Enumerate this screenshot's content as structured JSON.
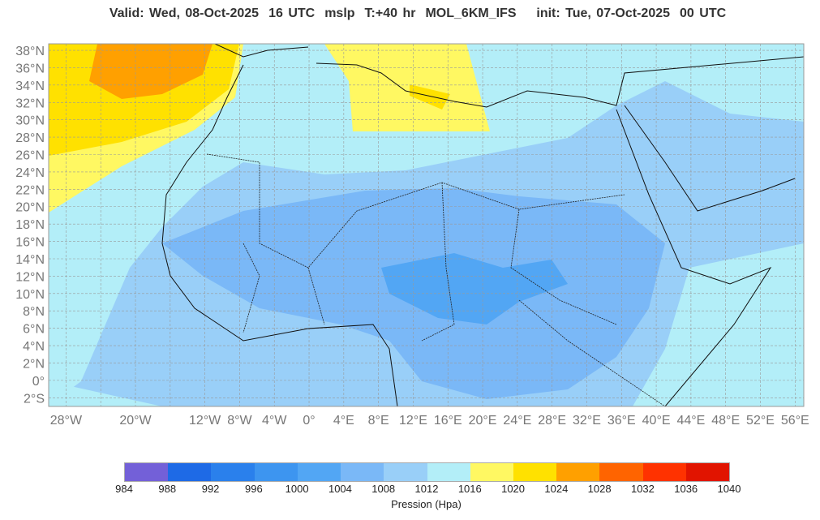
{
  "header": {
    "valid": "Valid: Wed, 08-Oct-2025",
    "valid_hour": "16 UTC",
    "field": "mslp",
    "lead": "T:+40 hr",
    "model": "MOL_6KM_IFS",
    "init": "init: Tue, 07-Oct-2025",
    "init_hour": "00 UTC"
  },
  "map": {
    "lon_range": [
      -30,
      57
    ],
    "lat_range": [
      -3,
      38.75
    ],
    "x_ticks": [
      {
        "lon": -28,
        "label": "28°W"
      },
      {
        "lon": -20,
        "label": "20°W"
      },
      {
        "lon": -12,
        "label": "12°W"
      },
      {
        "lon": -8,
        "label": "8°W"
      },
      {
        "lon": -4,
        "label": "4°W"
      },
      {
        "lon": 0,
        "label": "0°"
      },
      {
        "lon": 4,
        "label": "4°E"
      },
      {
        "lon": 8,
        "label": "8°E"
      },
      {
        "lon": 12,
        "label": "12°E"
      },
      {
        "lon": 16,
        "label": "16°E"
      },
      {
        "lon": 20,
        "label": "20°E"
      },
      {
        "lon": 24,
        "label": "24°E"
      },
      {
        "lon": 28,
        "label": "28°E"
      },
      {
        "lon": 32,
        "label": "32°E"
      },
      {
        "lon": 36,
        "label": "36°E"
      },
      {
        "lon": 40,
        "label": "40°E"
      },
      {
        "lon": 44,
        "label": "44°E"
      },
      {
        "lon": 48,
        "label": "48°E"
      },
      {
        "lon": 52,
        "label": "52°E"
      },
      {
        "lon": 56,
        "label": "56°E"
      }
    ],
    "y_ticks": [
      {
        "lat": 38,
        "label": "38°N"
      },
      {
        "lat": 36,
        "label": "36°N"
      },
      {
        "lat": 34,
        "label": "34°N"
      },
      {
        "lat": 32,
        "label": "32°N"
      },
      {
        "lat": 30,
        "label": "30°N"
      },
      {
        "lat": 28,
        "label": "28°N"
      },
      {
        "lat": 26,
        "label": "26°N"
      },
      {
        "lat": 24,
        "label": "24°N"
      },
      {
        "lat": 22,
        "label": "22°N"
      },
      {
        "lat": 20,
        "label": "20°N"
      },
      {
        "lat": 18,
        "label": "18°N"
      },
      {
        "lat": 16,
        "label": "16°N"
      },
      {
        "lat": 14,
        "label": "14°N"
      },
      {
        "lat": 12,
        "label": "12°N"
      },
      {
        "lat": 10,
        "label": "10°N"
      },
      {
        "lat": 8,
        "label": "8°N"
      },
      {
        "lat": 6,
        "label": "6°N"
      },
      {
        "lat": 4,
        "label": "4°N"
      },
      {
        "lat": 2,
        "label": "2°N"
      },
      {
        "lat": 0,
        "label": "0°"
      },
      {
        "lat": -2,
        "label": "2°S"
      }
    ],
    "grid": true
  },
  "colorbar": {
    "title": "Pression (Hpa)",
    "levels": [
      "984",
      "988",
      "992",
      "996",
      "1000",
      "1004",
      "1008",
      "1012",
      "1016",
      "1020",
      "1024",
      "1028",
      "1032",
      "1036",
      "1040"
    ],
    "colors": [
      "#7360d8",
      "#1e6ae6",
      "#2a80ec",
      "#3d95f0",
      "#52a6f4",
      "#7ab8f7",
      "#99cff8",
      "#b3eef8",
      "#fff862",
      "#ffe100",
      "#ffa000",
      "#ff6400",
      "#ff3200",
      "#e11400"
    ]
  }
}
